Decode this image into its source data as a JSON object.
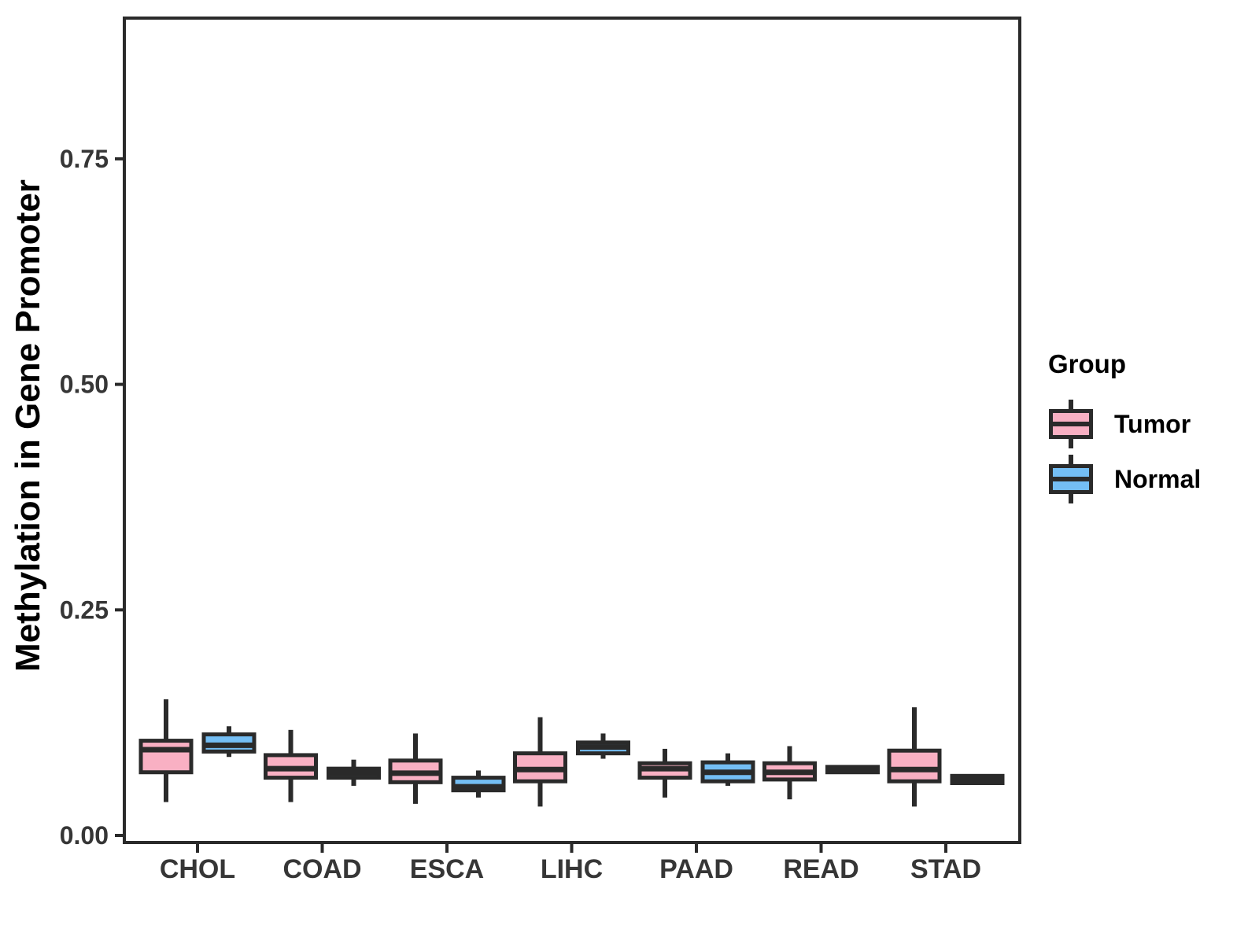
{
  "colors": {
    "background": "#FFFFFF",
    "box_outline": "#2A2A2A",
    "panel_border": "#2A2A2A",
    "axis_text": "#363636",
    "tumor_fill": "#F9B0C3",
    "normal_fill": "#74BEF4"
  },
  "chart_data": {
    "type": "boxplot",
    "title": "",
    "xlabel": "",
    "ylabel": "Methylation in Gene Promoter",
    "ylim": [
      -0.008,
      0.905
    ],
    "grid": false,
    "categories": [
      "CHOL",
      "COAD",
      "ESCA",
      "LIHC",
      "PAAD",
      "READ",
      "STAD"
    ],
    "yticks": [
      {
        "value": 0.0,
        "label": "0.00"
      },
      {
        "value": 0.25,
        "label": "0.25"
      },
      {
        "value": 0.5,
        "label": "0.50"
      },
      {
        "value": 0.75,
        "label": "0.75"
      }
    ],
    "legend": {
      "title": "Group",
      "position": "right",
      "items": [
        {
          "label": "Tumor",
          "color": "#F9B0C3"
        },
        {
          "label": "Normal",
          "color": "#74BEF4"
        }
      ]
    },
    "series": [
      {
        "name": "Tumor",
        "color": "#F9B0C3",
        "data": [
          {
            "category": "CHOL",
            "low": 0.037,
            "q1": 0.07,
            "median": 0.095,
            "q3": 0.105,
            "high": 0.151
          },
          {
            "category": "COAD",
            "low": 0.037,
            "q1": 0.064,
            "median": 0.074,
            "q3": 0.089,
            "high": 0.117
          },
          {
            "category": "ESCA",
            "low": 0.035,
            "q1": 0.059,
            "median": 0.069,
            "q3": 0.083,
            "high": 0.113
          },
          {
            "category": "LIHC",
            "low": 0.032,
            "q1": 0.06,
            "median": 0.073,
            "q3": 0.091,
            "high": 0.131
          },
          {
            "category": "PAAD",
            "low": 0.042,
            "q1": 0.064,
            "median": 0.074,
            "q3": 0.08,
            "high": 0.096
          },
          {
            "category": "READ",
            "low": 0.04,
            "q1": 0.062,
            "median": 0.07,
            "q3": 0.08,
            "high": 0.099
          },
          {
            "category": "STAD",
            "low": 0.032,
            "q1": 0.06,
            "median": 0.073,
            "q3": 0.094,
            "high": 0.142
          }
        ]
      },
      {
        "name": "Normal",
        "color": "#74BEF4",
        "data": [
          {
            "category": "CHOL",
            "low": 0.087,
            "q1": 0.093,
            "median": 0.1,
            "q3": 0.112,
            "high": 0.121
          },
          {
            "category": "COAD",
            "low": 0.055,
            "q1": 0.064,
            "median": 0.069,
            "q3": 0.074,
            "high": 0.084
          },
          {
            "category": "ESCA",
            "low": 0.042,
            "q1": 0.05,
            "median": 0.054,
            "q3": 0.064,
            "high": 0.072
          },
          {
            "category": "LIHC",
            "low": 0.085,
            "q1": 0.091,
            "median": 0.098,
            "q3": 0.103,
            "high": 0.113
          },
          {
            "category": "PAAD",
            "low": 0.055,
            "q1": 0.06,
            "median": 0.07,
            "q3": 0.081,
            "high": 0.091
          },
          {
            "category": "READ",
            "low": 0.07,
            "q1": 0.07,
            "median": 0.073,
            "q3": 0.076,
            "high": 0.076
          },
          {
            "category": "STAD",
            "low": 0.058,
            "q1": 0.058,
            "median": 0.062,
            "q3": 0.066,
            "high": 0.066
          }
        ]
      }
    ]
  }
}
